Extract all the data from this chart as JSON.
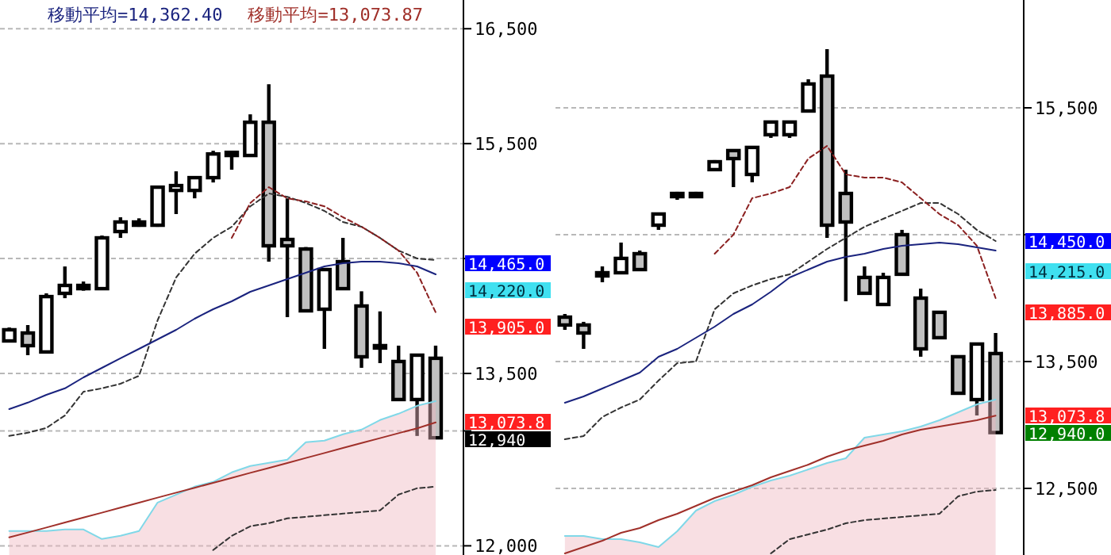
{
  "chart_data": [
    {
      "type": "candlestick",
      "categories": [
        null,
        null,
        null,
        null,
        null,
        null,
        null,
        null,
        null,
        null,
        null,
        null,
        null,
        null,
        null,
        null,
        null,
        null,
        null,
        null,
        null,
        null,
        null,
        null
      ],
      "ohlc": [
        [
          13783,
          13900,
          13770,
          13880
        ],
        [
          13852,
          13921,
          13659,
          13742
        ],
        [
          13687,
          14197,
          13687,
          14169
        ],
        [
          14197,
          14431,
          14155,
          14266
        ],
        [
          14238,
          14300,
          14220,
          14266
        ],
        [
          14238,
          14700,
          14238,
          14680
        ],
        [
          14735,
          14859,
          14680,
          14818
        ],
        [
          14790,
          14850,
          14776,
          14818
        ],
        [
          14790,
          15121,
          14776,
          15121
        ],
        [
          15093,
          15259,
          14887,
          15135
        ],
        [
          15093,
          15204,
          15024,
          15204
        ],
        [
          15204,
          15438,
          15162,
          15410
        ],
        [
          15397,
          15424,
          15273,
          15424
        ],
        [
          15397,
          15755,
          15397,
          15686
        ],
        [
          15686,
          16017,
          14473,
          14611
        ],
        [
          14666,
          15024,
          13990,
          14611
        ],
        [
          14583,
          14600,
          14045,
          14045
        ],
        [
          14059,
          14404,
          13714,
          14404
        ],
        [
          14473,
          14680,
          14238,
          14238
        ],
        [
          14087,
          14215,
          13549,
          13645
        ],
        [
          13742,
          14040,
          13590,
          13742
        ],
        [
          13604,
          13742,
          13259,
          13273
        ],
        [
          13273,
          13659,
          12956,
          13659
        ],
        [
          13632,
          13742,
          12940,
          12940
        ]
      ],
      "series": [
        {
          "type": "area",
          "color": "#f0b8c0",
          "values": [
            12129,
            12129,
            12129,
            12142,
            12142,
            12060,
            12087,
            12129,
            12377,
            12446,
            12515,
            12556,
            12639,
            12694,
            12722,
            12749,
            12901,
            12915,
            12970,
            13011,
            13094,
            13149,
            13218,
            13259
          ]
        },
        {
          "type": "line",
          "color": "#333333",
          "line_style": "dashed",
          "values": [
            null,
            null,
            null,
            null,
            null,
            null,
            null,
            null,
            null,
            null,
            null,
            11963,
            12087,
            12170,
            12198,
            12239,
            12253,
            12267,
            12280,
            12294,
            12308,
            12446,
            12501,
            12515
          ]
        },
        {
          "type": "line",
          "color": "#80d8e8",
          "values": [
            12129,
            12129,
            12129,
            12142,
            12142,
            12060,
            12087,
            12129,
            12377,
            12446,
            12515,
            12556,
            12639,
            12694,
            12722,
            12749,
            12901,
            12915,
            12970,
            13011,
            13094,
            13149,
            13218,
            13259
          ]
        },
        {
          "type": "line",
          "color": "#333333",
          "line_style": "dashed",
          "values": [
            12956,
            12984,
            13025,
            13135,
            13342,
            13370,
            13411,
            13480,
            13963,
            14335,
            14542,
            14680,
            14776,
            14955,
            15066,
            15038,
            14983,
            14914,
            14818,
            14776,
            14680,
            14569,
            14500,
            14487
          ]
        },
        {
          "type": "line",
          "color": "#8b2020",
          "line_style": "dashed",
          "values": [
            null,
            null,
            null,
            null,
            null,
            null,
            null,
            null,
            null,
            null,
            null,
            null,
            14680,
            14983,
            15121,
            15024,
            14997,
            14955,
            14859,
            14776,
            14680,
            14569,
            14376,
            14032
          ]
        },
        {
          "type": "line",
          "name": "移動平均=14,362.40",
          "color": "#1a237e",
          "values": [
            13190,
            13246,
            13314,
            13370,
            13466,
            13549,
            13632,
            13714,
            13797,
            13880,
            13976,
            14059,
            14128,
            14211,
            14266,
            14321,
            14376,
            14431,
            14459,
            14473,
            14473,
            14459,
            14431,
            14362
          ]
        },
        {
          "type": "line",
          "name": "移動平均=13,073.87",
          "color": "#a0302a",
          "values": [
            12073,
            12116,
            12159,
            12203,
            12246,
            12289,
            12332,
            12375,
            12419,
            12462,
            12505,
            12548,
            12591,
            12635,
            12678,
            12721,
            12764,
            12807,
            12851,
            12894,
            12937,
            12980,
            13023,
            13074
          ]
        }
      ],
      "ylim": [
        11920,
        16750
      ],
      "yticks": [
        {
          "value": 12000,
          "label": "12,000"
        },
        {
          "value": 13000,
          "label": null
        },
        {
          "value": 13500,
          "label": "13,500"
        },
        {
          "value": 14500,
          "label": null
        },
        {
          "value": 15500,
          "label": "15,500"
        },
        {
          "value": 16500,
          "label": "16,500"
        }
      ],
      "grid": "y",
      "legend": "top left",
      "annotations": [
        "14,465.0",
        "14,220.0",
        "13,905.0",
        "13,073.8",
        "12,940"
      ]
    },
    {
      "type": "candlestick",
      "categories": [
        null,
        null,
        null,
        null,
        null,
        null,
        null,
        null,
        null,
        null,
        null,
        null,
        null,
        null,
        null,
        null,
        null,
        null,
        null,
        null,
        null,
        null,
        null,
        null
      ],
      "ohlc": [
        [
          13850,
          13875,
          13750,
          13788
        ],
        [
          13788,
          13813,
          13600,
          13725
        ],
        [
          14175,
          14250,
          14125,
          14200
        ],
        [
          14200,
          14438,
          14200,
          14313
        ],
        [
          14350,
          14375,
          14225,
          14225
        ],
        [
          14575,
          14663,
          14538,
          14663
        ],
        [
          14800,
          14838,
          14775,
          14825
        ],
        [
          14800,
          14838,
          14788,
          14825
        ],
        [
          15013,
          15088,
          15000,
          15075
        ],
        [
          15163,
          15163,
          14875,
          15100
        ],
        [
          14975,
          15188,
          14913,
          15188
        ],
        [
          15288,
          15388,
          15263,
          15388
        ],
        [
          15288,
          15388,
          15263,
          15388
        ],
        [
          15475,
          15725,
          15475,
          15688
        ],
        [
          15750,
          15963,
          14475,
          14575
        ],
        [
          14825,
          15013,
          13975,
          14600
        ],
        [
          14163,
          14250,
          14038,
          14038
        ],
        [
          13950,
          14200,
          13950,
          14163
        ],
        [
          14500,
          14538,
          14188,
          14188
        ],
        [
          14000,
          14075,
          13538,
          13600
        ],
        [
          13888,
          13888,
          13688,
          13688
        ],
        [
          13538,
          13538,
          13250,
          13250
        ],
        [
          13200,
          13638,
          13075,
          13638
        ],
        [
          13563,
          13725,
          12940,
          12940
        ]
      ],
      "series": [
        {
          "type": "area",
          "color": "#f0b8c0",
          "values": [
            12125,
            12125,
            12100,
            12100,
            12075,
            12038,
            12163,
            12325,
            12400,
            12450,
            12513,
            12563,
            12600,
            12650,
            12700,
            12738,
            12900,
            12925,
            12950,
            12988,
            13038,
            13100,
            13163,
            13200
          ]
        },
        {
          "type": "line",
          "color": "#333333",
          "line_style": "dashed",
          "values": [
            null,
            null,
            null,
            null,
            null,
            null,
            null,
            null,
            null,
            null,
            null,
            11988,
            12100,
            12138,
            12175,
            12225,
            12250,
            12263,
            12275,
            12288,
            12300,
            12438,
            12475,
            12488
          ]
        },
        {
          "type": "line",
          "color": "#80d8e8",
          "values": [
            12125,
            12125,
            12100,
            12100,
            12075,
            12038,
            12163,
            12325,
            12400,
            12450,
            12513,
            12563,
            12600,
            12650,
            12700,
            12738,
            12900,
            12925,
            12950,
            12988,
            13038,
            13100,
            13163,
            13200
          ]
        },
        {
          "type": "line",
          "color": "#333333",
          "line_style": "dashed",
          "values": [
            12888,
            12913,
            13063,
            13138,
            13200,
            13350,
            13488,
            13500,
            13913,
            14038,
            14100,
            14150,
            14188,
            14288,
            14388,
            14475,
            14563,
            14625,
            14688,
            14750,
            14750,
            14663,
            14538,
            14450
          ]
        },
        {
          "type": "line",
          "color": "#8b2020",
          "line_style": "dashed",
          "values": [
            null,
            null,
            null,
            null,
            null,
            null,
            null,
            null,
            14350,
            14500,
            14788,
            14825,
            14875,
            15100,
            15200,
            14975,
            14950,
            14950,
            14913,
            14788,
            14663,
            14575,
            14413,
            14000
          ]
        },
        {
          "type": "line",
          "color": "#1a237e",
          "values": [
            13175,
            13225,
            13288,
            13350,
            13413,
            13538,
            13600,
            13688,
            13775,
            13875,
            13950,
            14050,
            14163,
            14225,
            14288,
            14325,
            14350,
            14388,
            14413,
            14425,
            14438,
            14425,
            14400,
            14375
          ]
        },
        {
          "type": "line",
          "color": "#a0302a",
          "values": [
            11988,
            12038,
            12088,
            12150,
            12188,
            12250,
            12300,
            12363,
            12425,
            12475,
            12525,
            12588,
            12638,
            12688,
            12750,
            12800,
            12838,
            12875,
            12925,
            12963,
            12988,
            13013,
            13038,
            13074
          ]
        }
      ],
      "ylim": [
        11975,
        16350
      ],
      "yticks": [
        {
          "value": 12500,
          "label": "12,500"
        },
        {
          "value": 13500,
          "label": "13,500"
        },
        {
          "value": 14500,
          "label": null
        },
        {
          "value": 15500,
          "label": "15,500"
        }
      ],
      "grid": "y",
      "annotations": [
        "14,450.0",
        "14,215.0",
        "13,885.0",
        "13,073.8",
        "12,940.0"
      ]
    }
  ]
}
